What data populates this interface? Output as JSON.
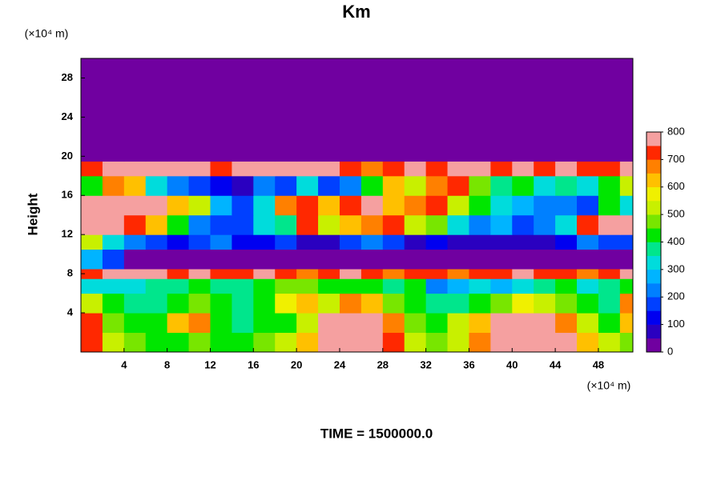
{
  "chart_data": {
    "type": "heatmap",
    "title": "Km",
    "ylabel": "Height",
    "y_unit": "(×10⁴ m)",
    "x_unit": "(×10⁴ m)",
    "footer": "TIME = 1500000.0",
    "xlim": [
      0,
      51.2
    ],
    "ylim": [
      0,
      30
    ],
    "xticks": [
      4,
      8,
      12,
      16,
      20,
      24,
      28,
      32,
      36,
      40,
      44,
      48
    ],
    "yticks": [
      4,
      8,
      12,
      16,
      20,
      24,
      28
    ],
    "x": [
      0,
      2,
      4,
      6,
      8,
      10,
      12,
      14,
      16,
      18,
      20,
      22,
      24,
      26,
      28,
      30,
      32,
      34,
      36,
      38,
      40,
      42,
      44,
      46,
      48,
      50,
      51.2
    ],
    "y": [
      0,
      2,
      4,
      6,
      7.5,
      8.5,
      10.5,
      12,
      14,
      16,
      18,
      19.5,
      30
    ],
    "z": [
      [
        700,
        500,
        450,
        420,
        420,
        450,
        420,
        400,
        450,
        500,
        600,
        780,
        800,
        800,
        700,
        500,
        450,
        500,
        650,
        780,
        800,
        800,
        750,
        600,
        500,
        450
      ],
      [
        700,
        450,
        420,
        400,
        600,
        650,
        400,
        380,
        400,
        420,
        500,
        750,
        800,
        800,
        650,
        450,
        400,
        500,
        600,
        750,
        800,
        780,
        650,
        500,
        400,
        600
      ],
      [
        500,
        420,
        380,
        380,
        420,
        450,
        400,
        380,
        420,
        550,
        600,
        500,
        650,
        600,
        450,
        400,
        380,
        350,
        400,
        450,
        550,
        500,
        450,
        400,
        350,
        650
      ],
      [
        300,
        320,
        300,
        350,
        380,
        400,
        350,
        350,
        400,
        450,
        450,
        400,
        400,
        420,
        350,
        400,
        200,
        250,
        300,
        250,
        300,
        350,
        400,
        300,
        350,
        400
      ],
      [
        700,
        750,
        780,
        750,
        700,
        750,
        720,
        700,
        750,
        700,
        650,
        700,
        750,
        700,
        650,
        700,
        700,
        650,
        700,
        700,
        750,
        700,
        700,
        650,
        700,
        750
      ],
      [
        250,
        150,
        30,
        40,
        20,
        20,
        30,
        20,
        20,
        20,
        20,
        20,
        20,
        20,
        20,
        20,
        20,
        20,
        20,
        20,
        20,
        20,
        20,
        20,
        20,
        30
      ],
      [
        500,
        300,
        200,
        150,
        100,
        150,
        200,
        120,
        100,
        150,
        80,
        60,
        150,
        200,
        150,
        80,
        100,
        60,
        50,
        60,
        80,
        60,
        100,
        200,
        150,
        150
      ],
      [
        750,
        780,
        700,
        600,
        400,
        200,
        150,
        150,
        300,
        350,
        700,
        500,
        600,
        650,
        700,
        500,
        450,
        300,
        200,
        250,
        150,
        200,
        300,
        700,
        780,
        800
      ],
      [
        800,
        800,
        780,
        750,
        600,
        500,
        250,
        150,
        300,
        650,
        700,
        600,
        700,
        750,
        600,
        650,
        700,
        500,
        400,
        300,
        250,
        200,
        200,
        150,
        400,
        300
      ],
      [
        400,
        650,
        600,
        300,
        200,
        150,
        100,
        80,
        200,
        150,
        300,
        150,
        200,
        400,
        600,
        500,
        650,
        700,
        450,
        350,
        400,
        300,
        350,
        300,
        400,
        500
      ],
      [
        700,
        780,
        750,
        800,
        780,
        750,
        700,
        750,
        800,
        800,
        750,
        780,
        700,
        650,
        700,
        750,
        700,
        800,
        780,
        700,
        750,
        700,
        750,
        700,
        700,
        750
      ],
      [
        0,
        0,
        0,
        0,
        0,
        0,
        0,
        0,
        0,
        0,
        0,
        0,
        0,
        0,
        0,
        0,
        0,
        0,
        0,
        0,
        0,
        0,
        0,
        0,
        0,
        0
      ]
    ],
    "levels": [
      0,
      50,
      100,
      150,
      200,
      250,
      300,
      350,
      400,
      450,
      500,
      550,
      600,
      650,
      700,
      750,
      800
    ],
    "colors": [
      "#7000a0",
      "#2a00c0",
      "#0000f0",
      "#0040ff",
      "#0080ff",
      "#00b4ff",
      "#00dcdc",
      "#00e68c",
      "#00e600",
      "#78e600",
      "#c8f000",
      "#f0f000",
      "#ffc000",
      "#ff8000",
      "#ff2800",
      "#f5a0a0"
    ],
    "cticks": [
      0,
      100,
      200,
      300,
      400,
      500,
      600,
      700,
      800
    ]
  }
}
